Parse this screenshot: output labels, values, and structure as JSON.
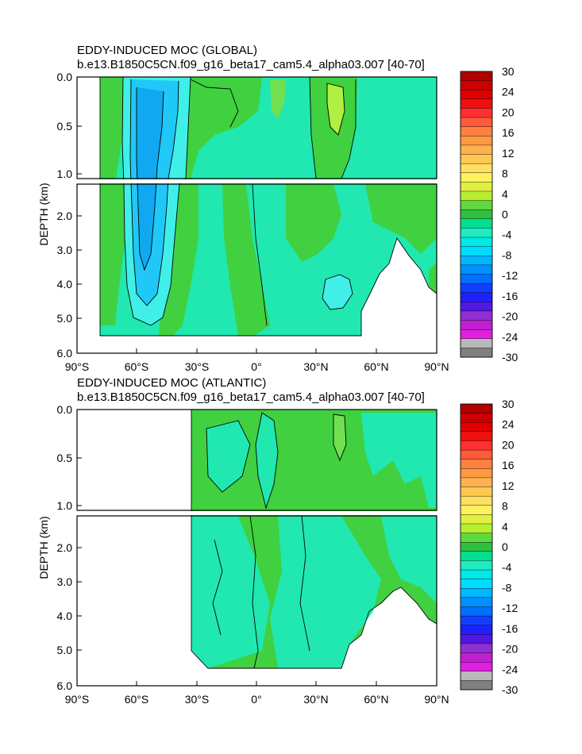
{
  "chart_data": [
    {
      "type": "heatmap",
      "title": "EDDY-INDUCED MOC (GLOBAL)",
      "subtitle": "b.e13.B1850C5CN.f09_g16_beta17_cam5.4_alpha03.007 [40-70]",
      "ylabel": "DEPTH (km)",
      "x_ticks": [
        "90°S",
        "60°S",
        "30°S",
        "0°",
        "30°N",
        "60°N",
        "90°N"
      ],
      "y_ticks_upper": [
        "0.0",
        "0.5",
        "1.0"
      ],
      "y_ticks_lower": [
        "2.0",
        "3.0",
        "4.0",
        "5.0",
        "6.0"
      ],
      "xlim": [
        -90,
        90
      ],
      "ylim_km": [
        0,
        6
      ]
    },
    {
      "type": "heatmap",
      "title": "EDDY-INDUCED MOC (ATLANTIC)",
      "subtitle": "b.e13.B1850C5CN.f09_g16_beta17_cam5.4_alpha03.007 [40-70]",
      "ylabel": "DEPTH (km)",
      "x_ticks": [
        "90°S",
        "60°S",
        "30°S",
        "0°",
        "30°N",
        "60°N",
        "90°N"
      ],
      "y_ticks_upper": [
        "0.0",
        "0.5",
        "1.0"
      ],
      "y_ticks_lower": [
        "2.0",
        "3.0",
        "4.0",
        "5.0",
        "6.0"
      ],
      "xlim": [
        -90,
        90
      ],
      "ylim_km": [
        0,
        6
      ]
    }
  ],
  "colorbar": {
    "labels": [
      "30",
      "24",
      "20",
      "16",
      "12",
      "8",
      "4",
      "0",
      "-4",
      "-8",
      "-12",
      "-16",
      "-20",
      "-24",
      "-30"
    ],
    "colors": [
      "#b00000",
      "#cc0000",
      "#e00000",
      "#f01010",
      "#ff3030",
      "#ff5a3a",
      "#ff8040",
      "#ff9a40",
      "#ffb050",
      "#ffc850",
      "#ffe060",
      "#fff060",
      "#e0f040",
      "#b8ee30",
      "#60d840",
      "#30c040",
      "#00e090",
      "#20ecc0",
      "#00e8e8",
      "#00dcff",
      "#00b8ff",
      "#0090ff",
      "#0070ff",
      "#1040ff",
      "#2020ff",
      "#5018e0",
      "#9030d0",
      "#c020d0",
      "#e020e0",
      "#b8b8b8",
      "#808080"
    ]
  },
  "colors": {
    "green": "#40d040",
    "lightgreen": "#70e050",
    "teal": "#20e8b0",
    "cyan": "#40f0e8",
    "blue1": "#20c8f8",
    "blue2": "#10a8f0",
    "lime": "#b0f040"
  }
}
